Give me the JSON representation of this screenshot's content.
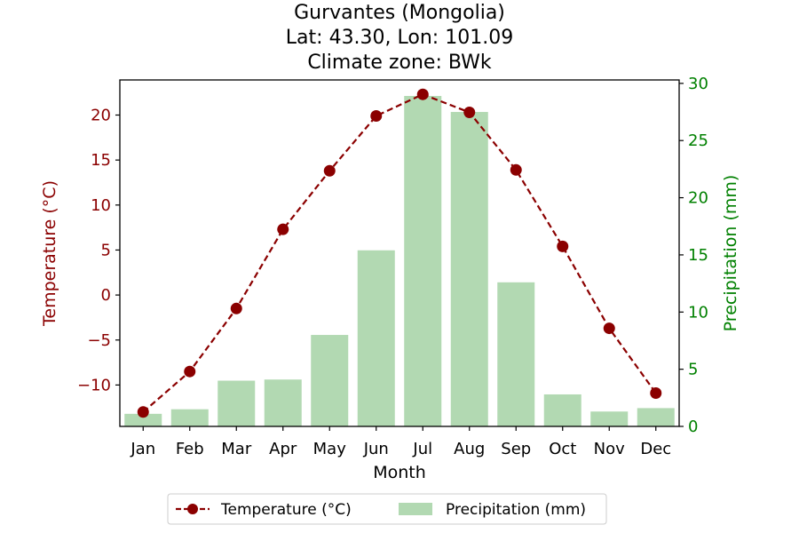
{
  "chart_data": {
    "type": "bar+line",
    "title_lines": [
      "Gurvantes (Mongolia)",
      "Lat: 43.30, Lon: 101.09",
      "Climate zone: BWk"
    ],
    "xlabel": "Month",
    "categories": [
      "Jan",
      "Feb",
      "Mar",
      "Apr",
      "May",
      "Jun",
      "Jul",
      "Aug",
      "Sep",
      "Oct",
      "Nov",
      "Dec"
    ],
    "temperature": {
      "name": "Temperature (°C)",
      "axis_label": "Temperature (°C)",
      "values": [
        -13.0,
        -8.5,
        -1.5,
        7.3,
        13.8,
        19.9,
        22.3,
        20.3,
        13.9,
        5.4,
        -3.7,
        -10.9
      ],
      "yticks": [
        -10,
        -5,
        0,
        5,
        10,
        15,
        20
      ],
      "ylim": [
        -14.6,
        23.9
      ],
      "color": "#8b0000",
      "style": "dashed line with circle markers"
    },
    "precipitation": {
      "name": "Precipitation (mm)",
      "axis_label": "Precipitation (mm)",
      "values": [
        1.1,
        1.5,
        4.0,
        4.1,
        8.0,
        15.4,
        28.9,
        27.5,
        12.6,
        2.8,
        1.3,
        1.6
      ],
      "yticks": [
        0,
        5,
        10,
        15,
        20,
        25,
        30
      ],
      "ylim": [
        0,
        30.3
      ],
      "color": "#b2d9b2",
      "axis_color": "#008000"
    },
    "legend": {
      "placement": "bottom-center",
      "items": [
        "Temperature (°C)",
        "Precipitation (mm)"
      ]
    },
    "grid": false
  }
}
